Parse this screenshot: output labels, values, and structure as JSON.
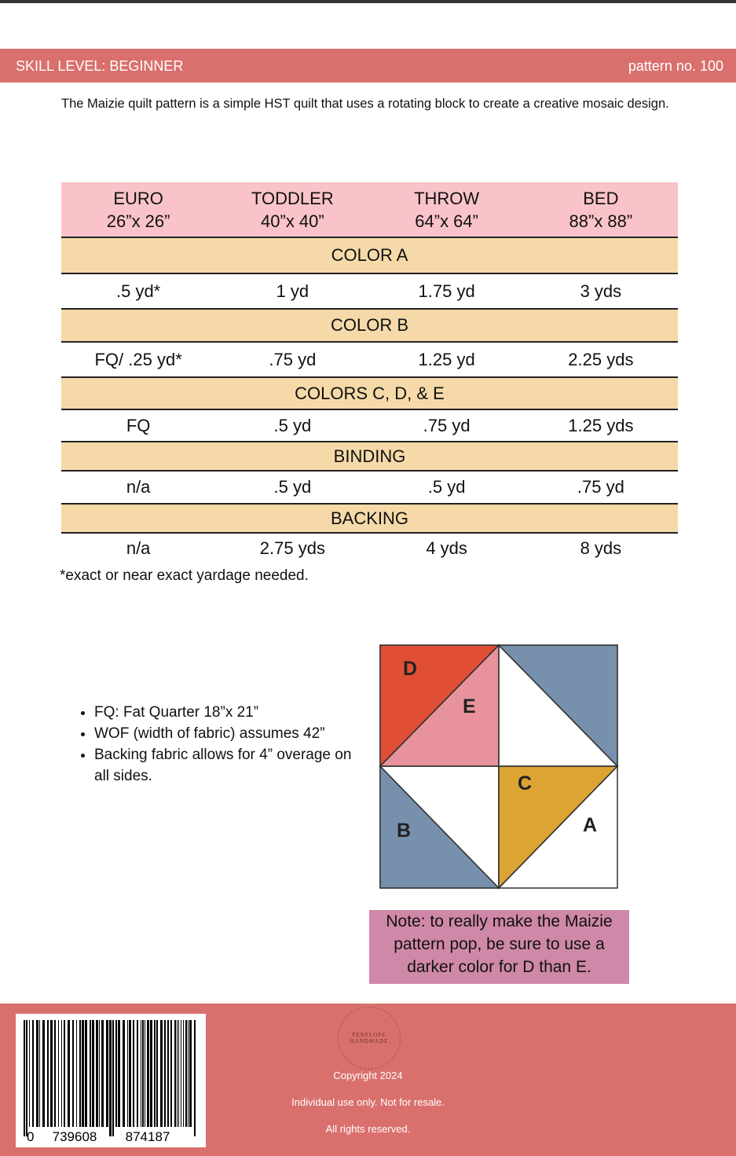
{
  "header": {
    "skill": "SKILL LEVEL:  BEGINNER",
    "pattern": "pattern no. 100"
  },
  "intro": "The Maizie quilt pattern is a simple HST quilt that uses a rotating block to create a creative mosaic design.",
  "table": {
    "sizes": [
      {
        "name": "EURO",
        "dims": "26”x 26”"
      },
      {
        "name": "TODDLER",
        "dims": "40”x 40”"
      },
      {
        "name": "THROW",
        "dims": "64”x 64”"
      },
      {
        "name": "BED",
        "dims": "88”x 88”"
      }
    ],
    "sections": [
      {
        "title": "COLOR A",
        "values": [
          ".5 yd*",
          "1 yd",
          "1.75 yd",
          "3 yds"
        ]
      },
      {
        "title": "COLOR B",
        "values": [
          "FQ/ .25 yd*",
          ".75 yd",
          "1.25 yd",
          "2.25 yds"
        ]
      },
      {
        "title": "COLORS C, D, & E",
        "values": [
          "FQ",
          ".5 yd",
          ".75 yd",
          "1.25 yds"
        ]
      },
      {
        "title": "BINDING",
        "values": [
          "n/a",
          ".5 yd",
          ".5 yd",
          ".75 yd"
        ]
      },
      {
        "title": "BACKING",
        "values": [
          "n/a",
          "2.75 yds",
          "4 yds",
          "8 yds"
        ]
      }
    ]
  },
  "footnote": "*exact or near exact yardage needed.",
  "bullets": [
    "FQ: Fat Quarter 18”x 21”",
    "WOF (width of fabric) assumes 42”",
    "Backing fabric allows for 4” overage on all sides."
  ],
  "diagram": {
    "labels": [
      "D",
      "E",
      "C",
      "A",
      "B"
    ]
  },
  "note": "Note: to really make the Maizie pattern pop, be sure to use a darker color for D than E.",
  "footer": {
    "barcode": [
      "0",
      "739608",
      "874187"
    ],
    "logo": "PENELOPE HANDMADE",
    "copyright": "Copyright 2024",
    "use": "Individual use only. Not for resale.",
    "rights": "All rights reserved."
  }
}
